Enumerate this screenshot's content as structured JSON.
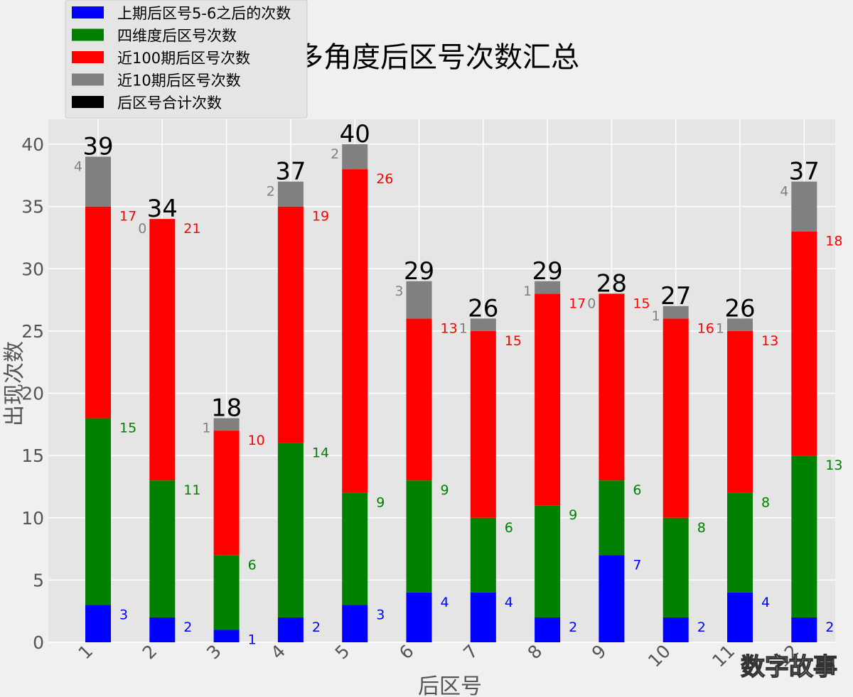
{
  "watermark": "数字故事",
  "chart_data": {
    "type": "bar",
    "stacked": true,
    "title": "多角度后区号次数汇总",
    "xlabel": "后区号",
    "ylabel": "出现次数",
    "ylim": [
      0,
      42
    ],
    "yticks": [
      0,
      5,
      10,
      15,
      20,
      25,
      30,
      35,
      40
    ],
    "grid": true,
    "legend_position": "top-left",
    "categories": [
      "1",
      "2",
      "3",
      "4",
      "5",
      "6",
      "7",
      "8",
      "9",
      "10",
      "11",
      "12"
    ],
    "series": [
      {
        "name": "上期后区号5-6之后的次数",
        "color": "#0000ff",
        "values": [
          3,
          2,
          1,
          2,
          3,
          4,
          4,
          2,
          7,
          2,
          4,
          2
        ]
      },
      {
        "name": "四维度后区号次数",
        "color": "#008000",
        "values": [
          15,
          11,
          6,
          14,
          9,
          9,
          6,
          9,
          6,
          8,
          8,
          13
        ]
      },
      {
        "name": "近100期后区号次数",
        "color": "#ff0000",
        "values": [
          17,
          21,
          10,
          19,
          26,
          13,
          15,
          17,
          15,
          16,
          13,
          18
        ]
      },
      {
        "name": "近10期后区号次数",
        "color": "#808080",
        "values": [
          4,
          0,
          1,
          2,
          2,
          3,
          1,
          1,
          0,
          1,
          1,
          4
        ]
      }
    ],
    "totals_series": {
      "name": "后区号合计次数",
      "color": "#000000",
      "values": [
        39,
        34,
        18,
        37,
        40,
        29,
        26,
        29,
        28,
        27,
        26,
        37
      ]
    }
  }
}
